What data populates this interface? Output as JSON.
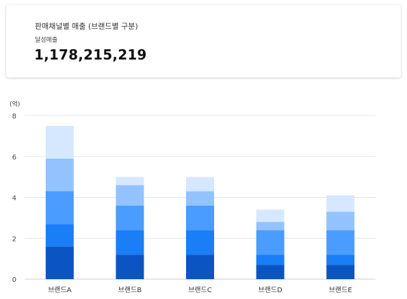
{
  "card": {
    "title": "판매채널별 매출 (브랜드별 구분)",
    "subtitle": "달성매출",
    "value": "1,178,215,219"
  },
  "colors": {
    "segments": [
      "#0a55c2",
      "#1a7ef6",
      "#4a9cff",
      "#93c3ff",
      "#d6e8ff"
    ],
    "grid": "#e6e6e6",
    "axis": "#cccccc"
  },
  "chart_data": {
    "type": "bar",
    "stacked": true,
    "unit_label": "(억)",
    "categories": [
      "브랜드A",
      "브랜드B",
      "브랜드C",
      "브랜드D",
      "브랜드E"
    ],
    "y_ticks": [
      "0",
      "2",
      "4",
      "6",
      "8"
    ],
    "ylim": [
      0,
      8
    ],
    "grid": true,
    "series": [
      {
        "values": [
          1.6,
          1.2,
          1.2,
          0.7,
          0.7
        ]
      },
      {
        "values": [
          1.1,
          1.2,
          1.2,
          0.5,
          0.5
        ]
      },
      {
        "values": [
          1.6,
          1.2,
          1.2,
          1.2,
          1.2
        ]
      },
      {
        "values": [
          1.6,
          1.0,
          0.7,
          0.4,
          0.9
        ]
      },
      {
        "values": [
          1.6,
          0.4,
          0.7,
          0.6,
          0.8
        ]
      }
    ]
  }
}
